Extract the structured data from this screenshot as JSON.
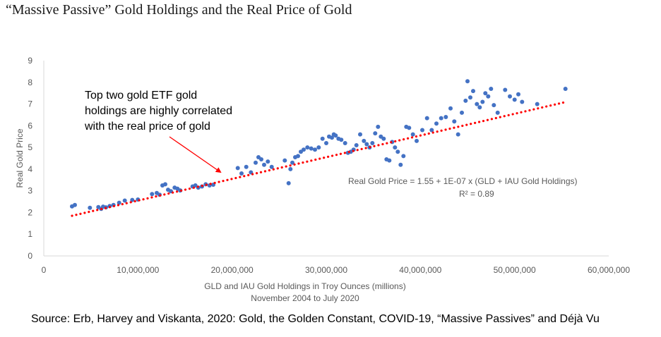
{
  "title": "“Massive Passive” Gold Holdings and the Real Price of Gold",
  "source": "Source: Erb, Harvey and Viskanta, 2020: Gold, the Golden Constant, COVID-19, “Massive Passives” and Déjà Vu",
  "colors": {
    "points": "#4472C4",
    "trendline": "#FF0000",
    "arrow": "#FF0000",
    "axis": "#D9D9D9"
  },
  "chart_data": {
    "type": "scatter",
    "xlabel": "GLD and IAU Gold Holdings in Troy Ounces (millions)",
    "xlabel2": "November 2004 to July 2020",
    "ylabel": "Real Gold Price",
    "xlim": [
      0,
      60000000
    ],
    "ylim": [
      0,
      9
    ],
    "xticks": [
      "0",
      "10,000,000",
      "20,000,000",
      "30,000,000",
      "40,000,000",
      "50,000,000",
      "60,000,000"
    ],
    "yticks": [
      "0",
      "1",
      "2",
      "3",
      "4",
      "5",
      "6",
      "7",
      "8",
      "9"
    ],
    "grid": false,
    "annotation": {
      "lines": [
        "Top two gold ETF gold",
        "holdings are highly correlated",
        "with the real price of gold"
      ]
    },
    "equation": "Real Gold Price = 1.55  + 1E-07 x (GLD + IAU Gold Holdings)",
    "r2_label": "R² = 0.89",
    "trendline": {
      "intercept": 1.55,
      "slope": 1e-07,
      "x_start": 3000000,
      "x_end": 55500000
    },
    "points": [
      [
        3000000,
        2.28
      ],
      [
        3300000,
        2.35
      ],
      [
        4900000,
        2.22
      ],
      [
        5800000,
        2.25
      ],
      [
        6100000,
        2.17
      ],
      [
        6300000,
        2.27
      ],
      [
        6600000,
        2.24
      ],
      [
        7000000,
        2.3
      ],
      [
        7400000,
        2.35
      ],
      [
        8000000,
        2.45
      ],
      [
        8600000,
        2.55
      ],
      [
        9400000,
        2.58
      ],
      [
        10000000,
        2.6
      ],
      [
        11500000,
        2.85
      ],
      [
        12000000,
        2.9
      ],
      [
        12300000,
        2.82
      ],
      [
        12600000,
        3.25
      ],
      [
        12900000,
        3.3
      ],
      [
        13200000,
        3.05
      ],
      [
        13500000,
        2.98
      ],
      [
        13900000,
        3.15
      ],
      [
        14200000,
        3.1
      ],
      [
        14500000,
        3.02
      ],
      [
        15800000,
        3.2
      ],
      [
        16100000,
        3.25
      ],
      [
        16400000,
        3.15
      ],
      [
        16800000,
        3.2
      ],
      [
        17200000,
        3.3
      ],
      [
        17600000,
        3.25
      ],
      [
        18000000,
        3.28
      ],
      [
        20600000,
        4.05
      ],
      [
        21000000,
        3.8
      ],
      [
        21500000,
        4.1
      ],
      [
        22000000,
        3.85
      ],
      [
        22500000,
        4.3
      ],
      [
        22800000,
        4.55
      ],
      [
        23100000,
        4.45
      ],
      [
        23400000,
        4.2
      ],
      [
        23800000,
        4.35
      ],
      [
        24200000,
        4.1
      ],
      [
        25600000,
        4.4
      ],
      [
        26000000,
        3.35
      ],
      [
        26200000,
        4.0
      ],
      [
        26400000,
        4.3
      ],
      [
        26700000,
        4.55
      ],
      [
        27000000,
        4.6
      ],
      [
        27300000,
        4.8
      ],
      [
        27600000,
        4.9
      ],
      [
        28000000,
        5.0
      ],
      [
        28400000,
        4.95
      ],
      [
        28800000,
        4.9
      ],
      [
        29200000,
        5.0
      ],
      [
        29600000,
        5.4
      ],
      [
        30000000,
        5.2
      ],
      [
        30300000,
        5.5
      ],
      [
        30600000,
        5.45
      ],
      [
        30800000,
        5.6
      ],
      [
        31000000,
        5.55
      ],
      [
        31300000,
        5.4
      ],
      [
        31600000,
        5.35
      ],
      [
        32000000,
        5.2
      ],
      [
        32300000,
        4.75
      ],
      [
        32600000,
        4.8
      ],
      [
        32900000,
        4.9
      ],
      [
        33200000,
        5.1
      ],
      [
        33600000,
        5.6
      ],
      [
        34000000,
        5.3
      ],
      [
        34300000,
        5.15
      ],
      [
        34600000,
        5.0
      ],
      [
        34900000,
        5.2
      ],
      [
        35200000,
        5.65
      ],
      [
        35500000,
        5.95
      ],
      [
        35800000,
        5.5
      ],
      [
        36100000,
        5.4
      ],
      [
        36400000,
        4.45
      ],
      [
        36700000,
        4.4
      ],
      [
        37000000,
        5.25
      ],
      [
        37300000,
        5.0
      ],
      [
        37600000,
        4.8
      ],
      [
        37900000,
        4.2
      ],
      [
        38200000,
        4.6
      ],
      [
        38500000,
        5.95
      ],
      [
        38800000,
        5.9
      ],
      [
        39200000,
        5.6
      ],
      [
        39600000,
        5.3
      ],
      [
        40200000,
        5.8
      ],
      [
        40700000,
        6.35
      ],
      [
        41200000,
        5.8
      ],
      [
        41700000,
        6.1
      ],
      [
        42200000,
        6.35
      ],
      [
        42700000,
        6.4
      ],
      [
        43200000,
        6.8
      ],
      [
        43600000,
        6.2
      ],
      [
        44000000,
        5.6
      ],
      [
        44400000,
        6.6
      ],
      [
        44800000,
        7.15
      ],
      [
        45000000,
        8.05
      ],
      [
        45300000,
        7.3
      ],
      [
        45600000,
        7.6
      ],
      [
        46000000,
        7.0
      ],
      [
        46300000,
        6.85
      ],
      [
        46600000,
        7.1
      ],
      [
        46900000,
        7.5
      ],
      [
        47200000,
        7.35
      ],
      [
        47500000,
        7.7
      ],
      [
        47800000,
        6.95
      ],
      [
        48200000,
        6.6
      ],
      [
        49000000,
        7.65
      ],
      [
        49500000,
        7.35
      ],
      [
        50000000,
        7.2
      ],
      [
        50400000,
        7.45
      ],
      [
        50800000,
        7.1
      ],
      [
        52400000,
        7.0
      ],
      [
        55400000,
        7.7
      ]
    ]
  }
}
